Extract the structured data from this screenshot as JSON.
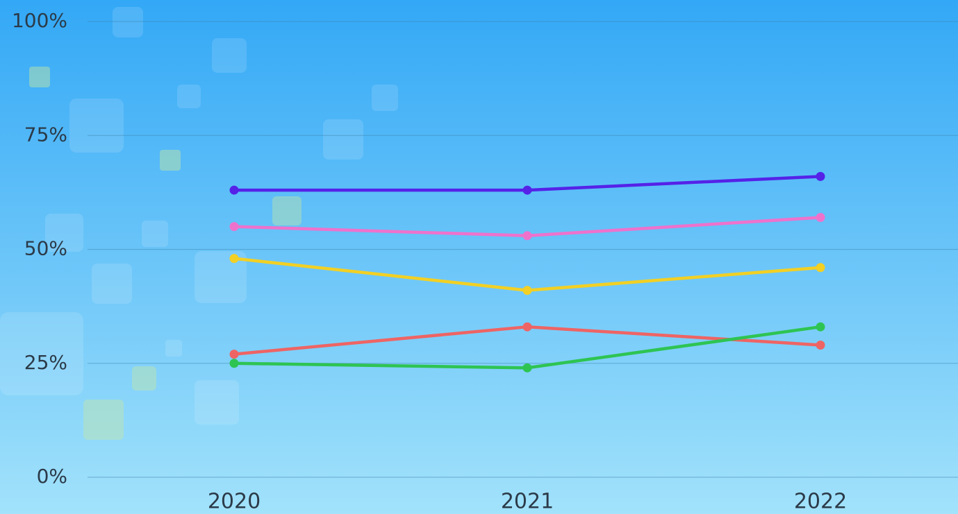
{
  "chart_data": {
    "type": "line",
    "categories": [
      "2020",
      "2021",
      "2022"
    ],
    "series": [
      {
        "color": "#5522e8",
        "values": [
          63,
          63,
          66
        ]
      },
      {
        "color": "#ee72cc",
        "values": [
          55,
          53,
          57
        ]
      },
      {
        "color": "#f2d024",
        "values": [
          48,
          41,
          46
        ]
      },
      {
        "color": "#ee6464",
        "values": [
          27,
          33,
          29
        ]
      },
      {
        "color": "#2ec452",
        "values": [
          25,
          24,
          33
        ]
      }
    ],
    "ylim": [
      0,
      100
    ],
    "yticks": [
      {
        "value": 0,
        "label": "0%"
      },
      {
        "value": 25,
        "label": "25%"
      },
      {
        "value": 50,
        "label": "50%"
      },
      {
        "value": 75,
        "label": "75%"
      },
      {
        "value": 100,
        "label": "100%"
      }
    ],
    "grid": true
  }
}
